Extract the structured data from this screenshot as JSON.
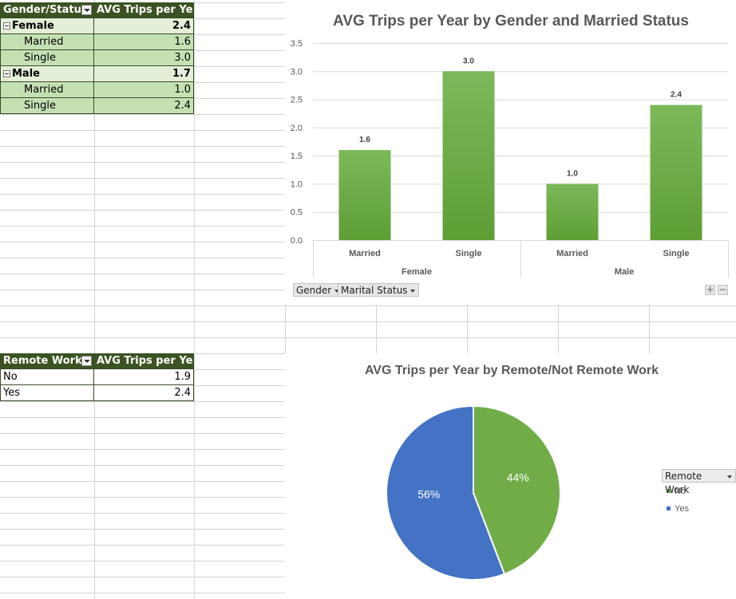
{
  "table1": {
    "header": [
      "Gender/Status",
      "AVG Trips per Year"
    ],
    "rows": [
      {
        "label": "Female",
        "value": "2.4",
        "kind": "group"
      },
      {
        "label": "Married",
        "value": "1.6",
        "kind": "item"
      },
      {
        "label": "Single",
        "value": "3.0",
        "kind": "item"
      },
      {
        "label": "Male",
        "value": "1.7",
        "kind": "group"
      },
      {
        "label": "Married",
        "value": "1.0",
        "kind": "item"
      },
      {
        "label": "Single",
        "value": "2.4",
        "kind": "item"
      }
    ]
  },
  "table2": {
    "header": [
      "Remote Work",
      "AVG Trips per Year"
    ],
    "rows": [
      {
        "label": "No",
        "value": "1.9",
        "kind": "plain"
      },
      {
        "label": "Yes",
        "value": "2.4",
        "kind": "plain"
      }
    ]
  },
  "chart_buttons": {
    "gender": "Gender",
    "marital": "Marital Status",
    "plus": "+",
    "minus": "−"
  },
  "chart_data": [
    {
      "type": "bar",
      "title": "AVG Trips per Year by Gender and Married Status",
      "groups": [
        "Female",
        "Male"
      ],
      "categories": [
        "Married",
        "Single",
        "Married",
        "Single"
      ],
      "values": [
        1.6,
        3.0,
        1.0,
        2.4
      ],
      "value_labels": [
        "1.6",
        "3.0",
        "1.0",
        "2.4"
      ],
      "ylim": [
        0,
        3.5
      ],
      "yticks": [
        "0.0",
        "0.5",
        "1.0",
        "1.5",
        "2.0",
        "2.5",
        "3.0",
        "3.5"
      ],
      "grid": true,
      "legend": "none",
      "color": "#70ad47"
    },
    {
      "type": "pie",
      "title": "AVG Trips per Year by Remote/Not Remote Work",
      "labels": [
        "No",
        "Yes"
      ],
      "values": [
        1.9,
        2.4
      ],
      "percent_labels": [
        "44%",
        "56%"
      ],
      "colors": [
        "#70ad47",
        "#4472c4"
      ],
      "legend_title": "Remote Work",
      "legend": "right"
    }
  ]
}
